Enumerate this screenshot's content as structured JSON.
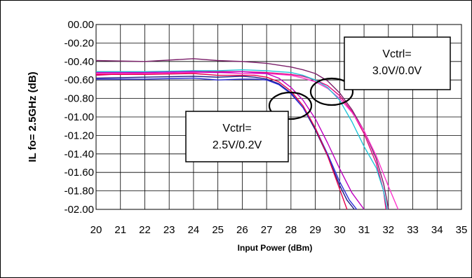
{
  "chart_data": {
    "type": "line",
    "title": "",
    "xlabel": "Input Power (dBm)",
    "ylabel": "IL fo= 2.5GHz (dB)",
    "xlim": [
      20,
      35
    ],
    "ylim": [
      -2.0,
      0.0
    ],
    "x_ticks": [
      "20",
      "21",
      "22",
      "23",
      "24",
      "25",
      "26",
      "27",
      "28",
      "29",
      "30",
      "31",
      "32",
      "33",
      "34",
      "35"
    ],
    "y_ticks": [
      "00.00",
      "-00.20",
      "-00.40",
      "-00.60",
      "-00.80",
      "-01.00",
      "-01.20",
      "-01.40",
      "-01.60",
      "-01.80",
      "-02.00"
    ],
    "grid": true,
    "legend": "none",
    "annotations": [
      {
        "line1": "Vctrl=",
        "line2": "3.0V/0.0V"
      },
      {
        "line1": "Vctrl=",
        "line2": "2.5V/0.2V"
      }
    ],
    "series": [
      {
        "color": "#7b1f6a",
        "x": [
          20,
          22,
          24,
          25,
          26,
          27,
          27.5,
          28,
          28.5,
          29,
          29.5,
          30,
          30.5,
          31,
          31.5,
          31.8,
          31.95,
          32.0
        ],
        "y": [
          -0.39,
          -0.4,
          -0.37,
          -0.39,
          -0.4,
          -0.42,
          -0.44,
          -0.46,
          -0.49,
          -0.53,
          -0.61,
          -0.74,
          -0.92,
          -1.15,
          -1.45,
          -1.72,
          -1.92,
          -2.0
        ]
      },
      {
        "color": "#e0007a",
        "x": [
          20,
          22,
          24,
          25,
          26,
          27,
          27.5,
          28,
          28.5,
          29,
          29.5,
          30,
          30.5,
          31,
          31.5,
          31.8,
          31.9
        ],
        "y": [
          -0.55,
          -0.52,
          -0.5,
          -0.51,
          -0.51,
          -0.52,
          -0.53,
          -0.54,
          -0.56,
          -0.6,
          -0.66,
          -0.77,
          -0.94,
          -1.18,
          -1.5,
          -1.8,
          -2.0
        ]
      },
      {
        "color": "#ff33cc",
        "x": [
          20,
          22,
          24,
          25,
          26,
          27,
          27.5,
          28,
          28.5,
          29,
          29.5,
          30,
          30.5,
          31,
          31.5,
          32,
          32.4
        ],
        "y": [
          -0.53,
          -0.53,
          -0.52,
          -0.52,
          -0.53,
          -0.53,
          -0.54,
          -0.55,
          -0.58,
          -0.62,
          -0.69,
          -0.8,
          -0.95,
          -1.15,
          -1.42,
          -1.75,
          -2.0
        ]
      },
      {
        "color": "#22c4d8",
        "x": [
          20,
          22,
          24,
          25,
          26,
          27,
          27.5,
          28,
          28.5,
          29,
          29.5,
          30,
          30.5,
          31,
          31.5,
          31.8,
          31.95
        ],
        "y": [
          -0.51,
          -0.51,
          -0.5,
          -0.5,
          -0.49,
          -0.5,
          -0.51,
          -0.52,
          -0.55,
          -0.6,
          -0.68,
          -0.82,
          -1.05,
          -1.32,
          -1.55,
          -1.8,
          -2.0
        ]
      },
      {
        "color": "#1a1a80",
        "x": [
          20,
          22,
          24,
          25,
          26,
          26.5,
          27,
          27.5,
          28,
          28.5,
          29,
          29.5,
          30,
          30.3,
          30.6
        ],
        "y": [
          -0.58,
          -0.57,
          -0.56,
          -0.57,
          -0.56,
          -0.57,
          -0.59,
          -0.64,
          -0.74,
          -0.9,
          -1.14,
          -1.42,
          -1.74,
          -1.9,
          -2.0
        ]
      },
      {
        "color": "#2b2bd9",
        "x": [
          20,
          22,
          24,
          25,
          26,
          26.5,
          27,
          27.5,
          28,
          28.5,
          29,
          29.5,
          30,
          30.4,
          30.7
        ],
        "y": [
          -0.59,
          -0.59,
          -0.58,
          -0.6,
          -0.59,
          -0.59,
          -0.6,
          -0.65,
          -0.75,
          -0.9,
          -1.12,
          -1.4,
          -1.7,
          -1.9,
          -2.0
        ]
      },
      {
        "color": "#e6004c",
        "x": [
          20,
          22,
          24,
          25,
          26,
          26.5,
          27,
          27.5,
          28,
          28.5,
          29,
          29.5,
          30,
          30.3
        ],
        "y": [
          -0.54,
          -0.54,
          -0.53,
          -0.55,
          -0.55,
          -0.55,
          -0.57,
          -0.62,
          -0.72,
          -0.88,
          -1.12,
          -1.42,
          -1.78,
          -2.0
        ]
      },
      {
        "color": "#c000c0",
        "x": [
          20,
          22,
          24,
          25,
          26,
          26.5,
          27,
          27.5,
          28,
          28.5,
          29,
          29.5,
          30,
          30.5,
          31.0
        ],
        "y": [
          -0.52,
          -0.52,
          -0.51,
          -0.52,
          -0.51,
          -0.52,
          -0.53,
          -0.58,
          -0.68,
          -0.82,
          -1.02,
          -1.28,
          -1.56,
          -1.82,
          -2.0
        ]
      }
    ]
  }
}
